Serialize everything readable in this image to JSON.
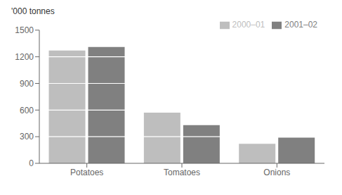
{
  "chart_data": {
    "type": "bar",
    "ylabel": "'000 tonnes",
    "categories": [
      "Potatoes",
      "Tomatoes",
      "Onions"
    ],
    "series": [
      {
        "name": "2000–01",
        "color": "#bebebe",
        "values": [
          1270,
          570,
          220
        ]
      },
      {
        "name": "2001–02",
        "color": "#808080",
        "values": [
          1310,
          430,
          290
        ]
      }
    ],
    "ylim": [
      0,
      1500
    ],
    "yticks": [
      0,
      300,
      600,
      900,
      1200,
      1500
    ],
    "grid": true,
    "legend": "upper right"
  }
}
